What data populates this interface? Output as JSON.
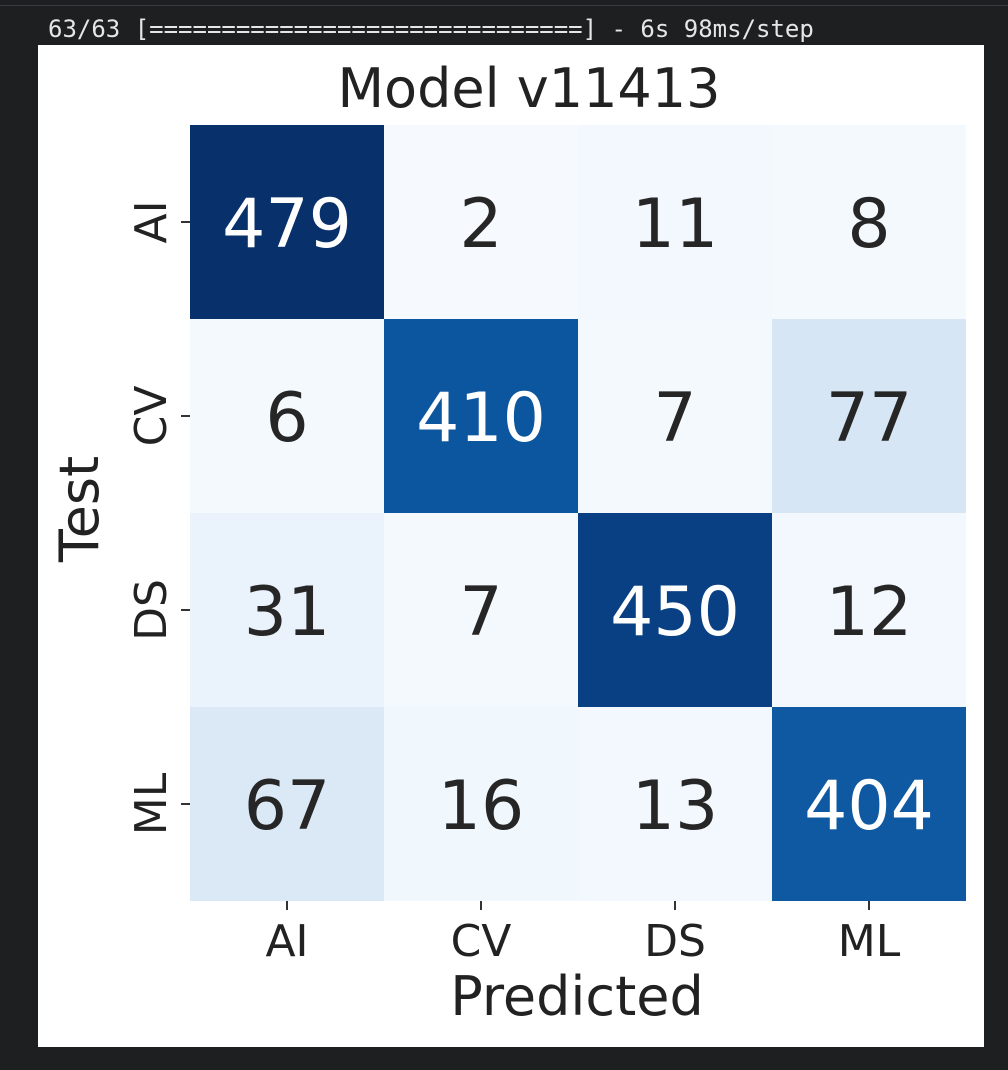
{
  "console": {
    "progress_text": "63/63 [==============================] - 6s 98ms/step"
  },
  "chart_data": {
    "type": "heatmap",
    "title": "Model v11413",
    "xlabel": "Predicted",
    "ylabel": "Test",
    "x_categories": [
      "AI",
      "CV",
      "DS",
      "ML"
    ],
    "y_categories": [
      "AI",
      "CV",
      "DS",
      "ML"
    ],
    "values": [
      [
        479,
        2,
        11,
        8
      ],
      [
        6,
        410,
        7,
        77
      ],
      [
        31,
        7,
        450,
        12
      ],
      [
        67,
        16,
        13,
        404
      ]
    ],
    "colormap": "Blues",
    "value_range": [
      0,
      479
    ],
    "colorbar": false,
    "annotated": true
  }
}
